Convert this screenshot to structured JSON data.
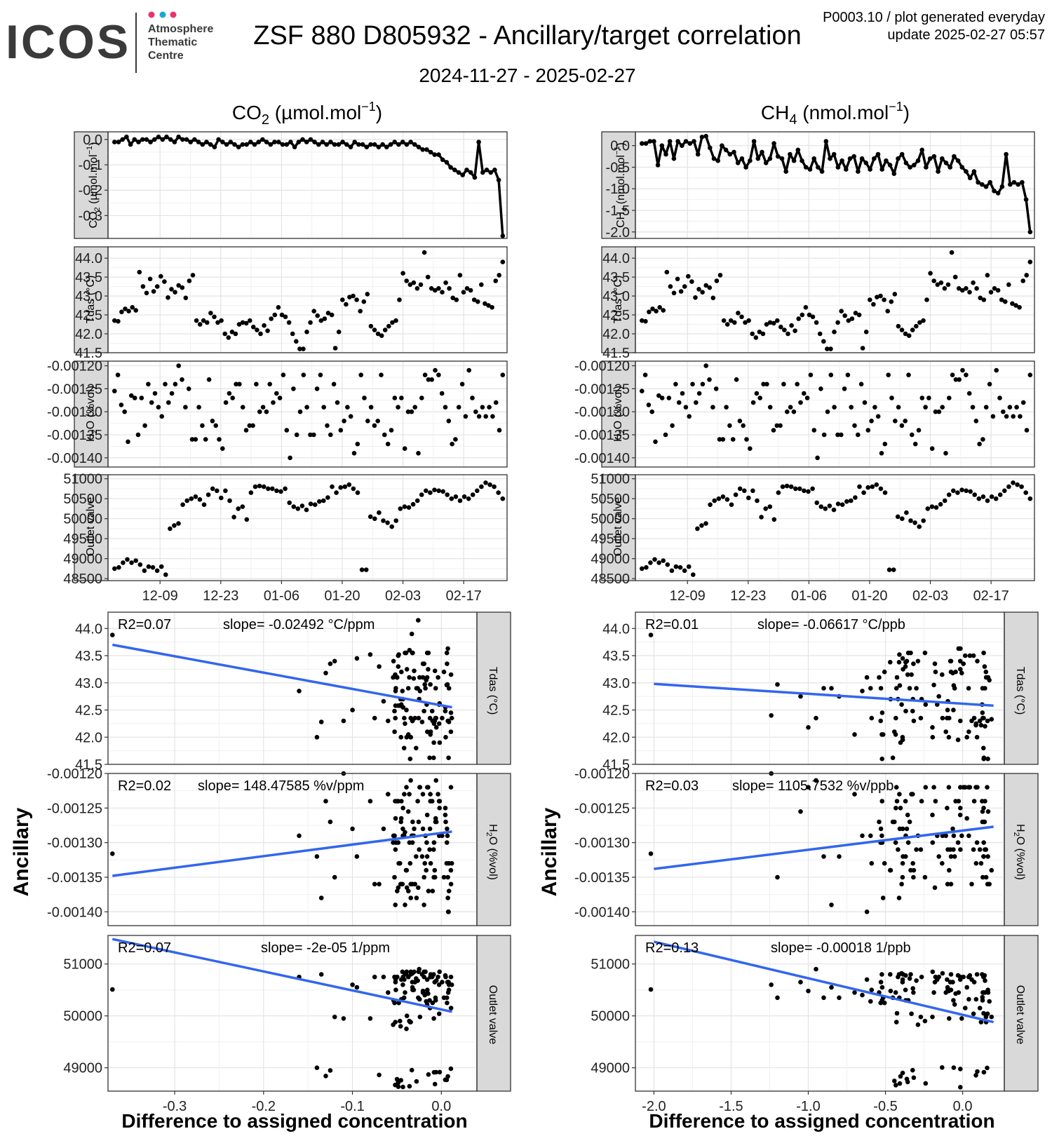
{
  "header": {
    "logo_text": "ICOS",
    "logo_sub1": "Atmosphere",
    "logo_sub2": "Thematic",
    "logo_sub3": "Centre",
    "logo_dot_colors": [
      "#e8336d",
      "#1aa7d8",
      "#e8336d"
    ],
    "title": "ZSF 880 D805932 - Ancillary/target correlation",
    "subtitle": "2024-11-27 - 2025-02-27",
    "meta_line1": "P0003.10 / plot generated everyday",
    "meta_line2": "update  2025-02-27 05:57"
  },
  "columns": {
    "co2": {
      "title_main": "CO",
      "title_sub": "2",
      "title_unit_pre": " (µmol.mol",
      "title_sup": "−1",
      "title_unit_post": ")"
    },
    "ch4": {
      "title_main": "CH",
      "title_sub": "4",
      "title_unit_pre": " (nmol.mol",
      "title_sup": "−1",
      "title_unit_post": ")"
    }
  },
  "labels": {
    "ancillary": "Ancillary",
    "xlabel": "Difference to assigned concentration",
    "strip_tdas": "Tdas (°C)",
    "strip_outlet": "Outlet valve",
    "strip_h2o_pre": "H",
    "strip_h2o_sub": "2",
    "strip_h2o_post": "O (%vol)",
    "strip_co2_pre": "CO",
    "strip_co2_sub": "2",
    "strip_co2_post": " (µmol.mol",
    "strip_ch4_pre": "CH",
    "strip_ch4_sub": "4",
    "strip_ch4_post": " (nmol.mol",
    "strip_sup": "−1",
    "strip_close": ")"
  },
  "chart_data": {
    "time_axis": {
      "type": "line",
      "x_start_day": 0,
      "x_end_day": 92,
      "tick_days": [
        12,
        26,
        40,
        54,
        68,
        82
      ],
      "tick_labels": [
        "12-09",
        "12-23",
        "01-06",
        "01-20",
        "02-03",
        "02-17"
      ]
    },
    "time_panels": {
      "co2": {
        "ylim": [
          -0.39,
          0.03
        ],
        "ticks": [
          0.0,
          -0.1,
          -0.2,
          -0.3
        ],
        "tick_labels": [
          "0.0",
          "-0.1",
          "-0.2",
          "-0.3"
        ],
        "values": [
          -0.01,
          -0.01,
          0.0,
          0.01,
          -0.02,
          0.0,
          -0.01,
          0.0,
          0.0,
          -0.01,
          0.0,
          0.01,
          0.0,
          0.01,
          0.0,
          -0.01,
          0.01,
          0.0,
          0.0,
          -0.01,
          0.0,
          -0.01,
          -0.02,
          -0.01,
          -0.02,
          -0.03,
          0.0,
          -0.01,
          -0.02,
          -0.01,
          -0.02,
          -0.03,
          -0.02,
          -0.02,
          -0.01,
          -0.02,
          -0.01,
          0.0,
          -0.01,
          -0.02,
          -0.01,
          -0.01,
          -0.02,
          -0.02,
          -0.01,
          -0.03,
          -0.01,
          0.0,
          -0.01,
          0.0,
          -0.01,
          -0.02,
          -0.01,
          -0.02,
          -0.01,
          -0.02,
          -0.02,
          -0.01,
          -0.02,
          -0.03,
          -0.01,
          -0.02,
          -0.02,
          -0.03,
          -0.02,
          -0.02,
          -0.03,
          -0.02,
          -0.03,
          -0.02,
          -0.01,
          -0.02,
          -0.01,
          -0.02,
          -0.01,
          -0.02,
          -0.03,
          -0.04,
          -0.04,
          -0.05,
          -0.06,
          -0.06,
          -0.08,
          -0.09,
          -0.11,
          -0.12,
          -0.13,
          -0.14,
          -0.12,
          -0.13,
          -0.15,
          -0.01,
          -0.13,
          -0.12,
          -0.13,
          -0.12,
          -0.16,
          -0.38
        ]
      },
      "ch4": {
        "ylim": [
          -2.15,
          0.32
        ],
        "ticks": [
          0.0,
          -0.5,
          -1.0,
          -1.5,
          -2.0
        ],
        "tick_labels": [
          "0.0",
          "-0.5",
          "-1.0",
          "-1.5",
          "-2.0"
        ],
        "values": [
          0.05,
          0.05,
          0.1,
          0.1,
          -0.45,
          0.0,
          -0.2,
          0.1,
          -0.3,
          0.1,
          0.0,
          0.1,
          0.05,
          0.1,
          -0.2,
          0.2,
          0.22,
          -0.05,
          -0.3,
          -0.35,
          0.0,
          -0.1,
          -0.2,
          -0.15,
          -0.4,
          -0.3,
          -0.5,
          -0.35,
          0.1,
          -0.3,
          -0.15,
          -0.4,
          -0.3,
          0.05,
          -0.25,
          -0.3,
          -0.6,
          -0.2,
          -0.35,
          -0.1,
          -0.35,
          -0.5,
          -0.55,
          -0.3,
          -0.5,
          -0.6,
          0.1,
          -0.3,
          -0.2,
          -0.5,
          -0.35,
          -0.55,
          -0.3,
          -0.25,
          -0.6,
          -0.3,
          -0.4,
          -0.55,
          -0.3,
          -0.2,
          -0.55,
          -0.35,
          -0.45,
          -0.65,
          -0.3,
          -0.2,
          -0.4,
          -0.5,
          -0.45,
          -0.35,
          -0.1,
          -0.5,
          -0.3,
          -0.25,
          -0.6,
          -0.3,
          -0.4,
          -0.5,
          -0.25,
          -0.35,
          -0.5,
          -0.6,
          -0.75,
          -0.6,
          -0.85,
          -0.9,
          -0.95,
          -0.85,
          -1.05,
          -1.1,
          -0.95,
          -0.2,
          -0.9,
          -0.85,
          -0.9,
          -0.85,
          -1.25,
          -2.0
        ]
      }
    },
    "tdas_time": {
      "ylim": [
        41.5,
        44.3
      ],
      "ticks": [
        41.5,
        42.0,
        42.5,
        43.0,
        43.5,
        44.0
      ],
      "tick_labels": [
        "41.5",
        "42.0",
        "42.5",
        "43.0",
        "43.5",
        "44.0"
      ],
      "values": [
        42.35,
        42.33,
        42.58,
        42.66,
        42.6,
        42.7,
        42.62,
        43.63,
        43.25,
        43.08,
        43.45,
        43.12,
        43.25,
        43.52,
        43.38,
        42.96,
        43.18,
        43.1,
        43.28,
        43.22,
        42.95,
        43.4,
        43.55,
        42.35,
        42.25,
        42.35,
        42.3,
        42.55,
        42.45,
        42.3,
        42.35,
        42.0,
        41.9,
        42.05,
        42.0,
        42.25,
        42.3,
        42.28,
        42.35,
        42.18,
        42.1,
        42.0,
        42.22,
        42.08,
        42.4,
        42.5,
        42.7,
        42.5,
        42.45,
        42.3,
        42.0,
        41.8,
        41.6,
        41.6,
        42.05,
        42.3,
        42.6,
        42.48,
        42.35,
        42.4,
        42.55,
        42.5,
        41.62,
        42.05,
        42.9,
        42.78,
        42.97,
        43.0,
        42.9,
        42.6,
        42.85,
        43.05,
        42.2,
        42.1,
        42.0,
        41.95,
        42.1,
        42.2,
        42.3,
        42.35,
        42.9,
        43.6,
        43.4,
        43.3,
        43.35,
        43.2,
        43.3,
        44.15,
        43.5,
        43.2,
        43.15,
        43.2,
        43.1,
        43.35,
        43.2,
        42.95,
        42.9,
        43.55,
        43.1,
        43.2,
        43.15,
        42.9,
        42.85,
        43.3,
        42.8,
        42.75,
        42.7,
        43.4,
        43.55,
        43.9
      ]
    },
    "h2o_time": {
      "ylim": [
        -0.00142,
        -0.00119
      ],
      "ticks": [
        -0.0012,
        -0.00125,
        -0.0013,
        -0.00135,
        -0.0014
      ],
      "tick_labels": [
        "-0.00120",
        "-0.00125",
        "-0.00130",
        "-0.00135",
        "-0.00140"
      ],
      "values": [
        -0.001255,
        -0.00122,
        -0.001285,
        -0.0013,
        -0.001365,
        -0.001265,
        -0.00127,
        -0.00135,
        -0.00127,
        -0.00133,
        -0.00124,
        -0.00128,
        -0.00126,
        -0.00129,
        -0.00131,
        -0.00124,
        -0.00128,
        -0.00126,
        -0.00124,
        -0.0012,
        -0.00123,
        -0.00129,
        -0.00125,
        -0.00136,
        -0.00136,
        -0.00129,
        -0.00133,
        -0.00136,
        -0.00123,
        -0.00132,
        -0.00133,
        -0.00136,
        -0.00138,
        -0.00128,
        -0.00126,
        -0.00127,
        -0.00124,
        -0.00124,
        -0.00129,
        -0.00134,
        -0.00133,
        -0.00133,
        -0.00124,
        -0.0013,
        -0.00129,
        -0.0013,
        -0.00124,
        -0.00128,
        -0.00126,
        -0.00127,
        -0.00122,
        -0.00134,
        -0.0014,
        -0.00125,
        -0.00135,
        -0.0013,
        -0.00122,
        -0.00129,
        -0.00135,
        -0.00135,
        -0.00125,
        -0.00122,
        -0.00129,
        -0.00133,
        -0.00135,
        -0.00124,
        -0.00128,
        -0.00134,
        -0.00132,
        -0.00129,
        -0.00131,
        -0.00139,
        -0.00137,
        -0.00122,
        -0.00127,
        -0.00132,
        -0.00129,
        -0.00133,
        -0.00132,
        -0.00122,
        -0.00135,
        -0.00137,
        -0.00134,
        -0.00127,
        -0.00129,
        -0.00127,
        -0.00138,
        -0.0013,
        -0.0013,
        -0.00129,
        -0.00139,
        -0.00127,
        -0.00122,
        -0.00123,
        -0.00123,
        -0.00121,
        -0.00122,
        -0.00126,
        -0.00129,
        -0.00132,
        -0.00137,
        -0.00136,
        -0.00129,
        -0.00124,
        -0.00131,
        -0.00121,
        -0.00127,
        -0.0013,
        -0.00131,
        -0.00129,
        -0.00131,
        -0.00129,
        -0.00131,
        -0.00128,
        -0.00134,
        -0.00122
      ]
    },
    "outlet_time": {
      "ylim": [
        48450,
        51100
      ],
      "ticks": [
        48500,
        49000,
        49500,
        50000,
        50500,
        51000
      ],
      "tick_labels": [
        "48500",
        "49000",
        "49500",
        "50000",
        "50500",
        "51000"
      ],
      "values": [
        48750,
        48780,
        48900,
        48980,
        48900,
        48950,
        48850,
        48700,
        48800,
        48780,
        48700,
        48800,
        48600,
        49750,
        49830,
        49880,
        50350,
        50450,
        50500,
        50550,
        50480,
        50350,
        50600,
        50750,
        50700,
        50520,
        50700,
        50450,
        50040,
        50250,
        50300,
        49980,
        50650,
        50800,
        50820,
        50800,
        50750,
        50750,
        50700,
        50680,
        50750,
        50400,
        50300,
        50250,
        50320,
        50220,
        50370,
        50350,
        50430,
        50450,
        50530,
        50800,
        50650,
        50780,
        50800,
        50850,
        50750,
        50650,
        48720,
        48720,
        50050,
        50000,
        50150,
        49950,
        49900,
        49800,
        49950,
        50250,
        50300,
        50280,
        50360,
        50450,
        50600,
        50700,
        50650,
        50720,
        50700,
        50680,
        50600,
        50500,
        50550,
        50450,
        50550,
        50500,
        50600,
        50700,
        50800,
        50900,
        50850,
        50800,
        50650,
        50500
      ]
    },
    "scatter_panels": {
      "co2": {
        "type": "scatter",
        "xlim": [
          -0.375,
          0.04
        ],
        "xticks": [
          -0.3,
          -0.2,
          -0.1,
          0.0
        ],
        "xtick_labels": [
          "-0.3",
          "-0.2",
          "-0.1",
          "0.0"
        ],
        "tdas": {
          "r2_label": "R2=0.07",
          "slope_label": "slope= -0.02492 °C/ppm",
          "line": [
            [
              -0.37,
              43.7
            ],
            [
              0.012,
              42.55
            ]
          ]
        },
        "h2o": {
          "r2_label": "R2=0.02",
          "slope_label": "slope= 148.47585 %v/ppm",
          "line": [
            [
              -0.37,
              -0.001348
            ],
            [
              0.012,
              -0.001284
            ]
          ]
        },
        "outlet": {
          "r2_label": "R2=0.07",
          "slope_label": "slope= -2e-05 1/ppm",
          "line": [
            [
              -0.37,
              51480
            ],
            [
              0.012,
              50080
            ]
          ]
        }
      },
      "ch4": {
        "type": "scatter",
        "xlim": [
          -2.12,
          0.27
        ],
        "xticks": [
          -2.0,
          -1.5,
          -1.0,
          -0.5,
          0.0
        ],
        "xtick_labels": [
          "-2.0",
          "-1.5",
          "-1.0",
          "-0.5",
          "0.0"
        ],
        "tdas": {
          "r2_label": "R2=0.01",
          "slope_label": "slope= -0.06617 °C/ppb",
          "line": [
            [
              -2.0,
              42.98
            ],
            [
              0.2,
              42.58
            ]
          ]
        },
        "h2o": {
          "r2_label": "R2=0.03",
          "slope_label": "slope= 1105.7532 %v/ppb",
          "line": [
            [
              -2.0,
              -0.001338
            ],
            [
              0.2,
              -0.001277
            ]
          ]
        },
        "outlet": {
          "r2_label": "R2=0.13",
          "slope_label": "slope= -0.00018 1/ppb",
          "line": [
            [
              -2.0,
              51430
            ],
            [
              0.2,
              49880
            ]
          ]
        }
      }
    },
    "tdas_scatter": {
      "ylim": [
        41.5,
        44.3
      ],
      "ticks": [
        41.5,
        42.0,
        42.5,
        43.0,
        43.5,
        44.0
      ],
      "tick_labels": [
        "41.5",
        "42.0",
        "42.5",
        "43.0",
        "43.5",
        "44.0"
      ]
    },
    "h2o_scatter": {
      "ylim": [
        -0.00142,
        -0.0012
      ],
      "ticks": [
        -0.0012,
        -0.00125,
        -0.0013,
        -0.00135,
        -0.0014
      ],
      "tick_labels": [
        "-0.00120",
        "-0.00125",
        "-0.00130",
        "-0.00135",
        "-0.00140"
      ]
    },
    "outlet_scatter": {
      "ylim": [
        48550,
        51550
      ],
      "ticks": [
        49000,
        50000,
        51000
      ],
      "tick_labels": [
        "49000",
        "50000",
        "51000"
      ]
    }
  }
}
